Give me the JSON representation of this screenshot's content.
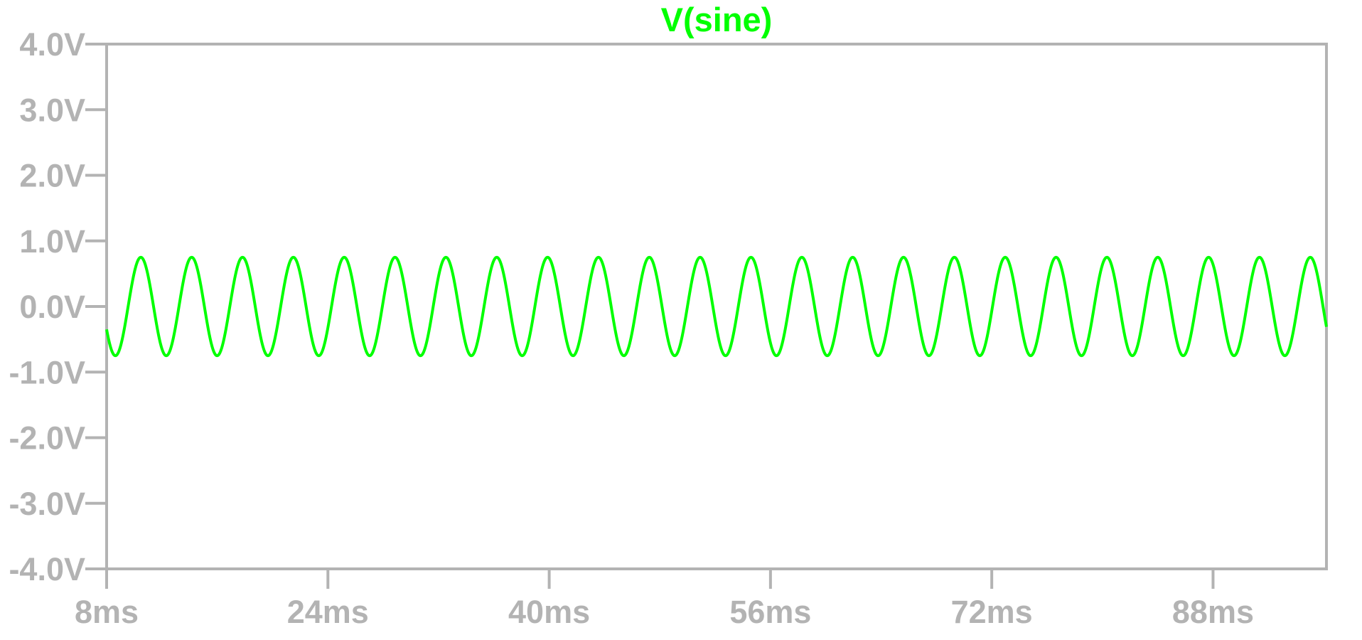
{
  "chart_data": {
    "type": "line",
    "title": "V(sine)",
    "xlabel": "",
    "ylabel": "",
    "x_unit": "ms",
    "y_unit": "V",
    "xlim": [
      8,
      96.2
    ],
    "ylim": [
      -4.0,
      4.0
    ],
    "x_tick_values": [
      8,
      24,
      40,
      56,
      72,
      88
    ],
    "x_tick_labels": [
      "8ms",
      "24ms",
      "40ms",
      "56ms",
      "72ms",
      "88ms"
    ],
    "y_tick_values": [
      4,
      3,
      2,
      1,
      0,
      -1,
      -2,
      -3,
      -4
    ],
    "y_tick_labels": [
      "4.0V",
      "3.0V",
      "2.0V",
      "1.0V",
      "0.0V",
      "-1.0V",
      "-2.0V",
      "-3.0V",
      "-4.0V"
    ],
    "grid": false,
    "legend": "none",
    "series": [
      {
        "name": "V(sine)",
        "waveform": "sine",
        "amplitude_V": 0.75,
        "offset_V": 0.0,
        "frequency_Hz": 272,
        "value_at_start_V": -0.35,
        "t_start_ms": 8,
        "t_end_ms": 96.2
      }
    ]
  },
  "colors": {
    "background": "#ffffff",
    "axis": "#b3b3b3",
    "trace": "#00ff00"
  }
}
